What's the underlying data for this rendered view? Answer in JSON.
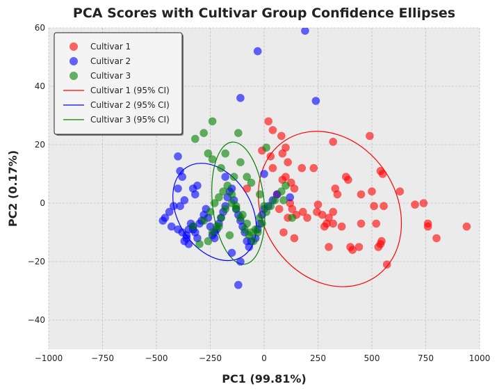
{
  "chart_data": {
    "type": "scatter",
    "title": "PCA Scores with Cultivar Group Confidence Ellipses",
    "xlabel": "PC1 (99.81%)",
    "ylabel": "PC2 (0.17%)",
    "xlim": [
      -1000,
      1000
    ],
    "ylim": [
      -50,
      60
    ],
    "xticks": [
      -1000,
      -750,
      -500,
      -250,
      0,
      250,
      500,
      750,
      1000
    ],
    "yticks": [
      -40,
      -20,
      0,
      20,
      40,
      60
    ],
    "xtick_labels": [
      "−1000",
      "−750",
      "−500",
      "−250",
      "0",
      "250",
      "500",
      "750",
      "1000"
    ],
    "ytick_labels": [
      "−40",
      "−20",
      "0",
      "20",
      "40",
      "60"
    ],
    "grid": true,
    "legend_position": "top-left",
    "series": [
      {
        "name": "Cultivar 1",
        "color": "#ff0000",
        "points": [
          [
            20,
            28
          ],
          [
            40,
            25
          ],
          [
            80,
            23
          ],
          [
            85,
            17
          ],
          [
            110,
            14
          ],
          [
            125,
            7
          ],
          [
            140,
            5
          ],
          [
            175,
            12
          ],
          [
            230,
            12
          ],
          [
            130,
            -2
          ],
          [
            150,
            -4
          ],
          [
            180,
            -3
          ],
          [
            200,
            -5
          ],
          [
            245,
            -3
          ],
          [
            250,
            -0.5
          ],
          [
            270,
            -4
          ],
          [
            280,
            -8
          ],
          [
            290,
            -7
          ],
          [
            300,
            -15
          ],
          [
            300,
            -5
          ],
          [
            320,
            -7
          ],
          [
            320,
            -3
          ],
          [
            330,
            5
          ],
          [
            340,
            3
          ],
          [
            360,
            -8
          ],
          [
            380,
            9
          ],
          [
            390,
            8
          ],
          [
            320,
            21
          ],
          [
            400,
            -15
          ],
          [
            410,
            -16
          ],
          [
            440,
            -15
          ],
          [
            450,
            -7
          ],
          [
            450,
            3
          ],
          [
            490,
            23
          ],
          [
            500,
            4
          ],
          [
            510,
            -1
          ],
          [
            520,
            -7
          ],
          [
            530,
            -15
          ],
          [
            540,
            -14
          ],
          [
            540,
            11
          ],
          [
            550,
            10
          ],
          [
            545,
            -13
          ],
          [
            555,
            -1
          ],
          [
            570,
            -21
          ],
          [
            630,
            4
          ],
          [
            700,
            -0.5
          ],
          [
            740,
            0
          ],
          [
            760,
            -8
          ],
          [
            760,
            -7
          ],
          [
            800,
            -12
          ],
          [
            940,
            -8
          ],
          [
            110,
            -5
          ],
          [
            140,
            -12
          ],
          [
            90,
            -10
          ],
          [
            70,
            -2
          ],
          [
            40,
            12
          ],
          [
            30,
            16
          ],
          [
            100,
            19
          ],
          [
            -10,
            18
          ],
          [
            85,
            8
          ],
          [
            100,
            9
          ],
          [
            60,
            3
          ],
          [
            120,
            0
          ],
          [
            -80,
            5
          ]
        ],
        "legend_label": "Cultivar 1"
      },
      {
        "name": "Cultivar 2",
        "color": "#0000ff",
        "points": [
          [
            190,
            59
          ],
          [
            -30,
            52
          ],
          [
            240,
            35
          ],
          [
            -110,
            36
          ],
          [
            -400,
            16
          ],
          [
            -390,
            11
          ],
          [
            -380,
            9
          ],
          [
            -400,
            5
          ],
          [
            -330,
            5
          ],
          [
            -310,
            6
          ],
          [
            -320,
            3
          ],
          [
            -370,
            1
          ],
          [
            -390,
            -1
          ],
          [
            -420,
            -1
          ],
          [
            -440,
            -3
          ],
          [
            -460,
            -5
          ],
          [
            -470,
            -6
          ],
          [
            -430,
            -8
          ],
          [
            -400,
            -9
          ],
          [
            -380,
            -10
          ],
          [
            -370,
            -13
          ],
          [
            -360,
            -12
          ],
          [
            -350,
            -9
          ],
          [
            -340,
            -7
          ],
          [
            -330,
            -8
          ],
          [
            -320,
            -10
          ],
          [
            -300,
            -7
          ],
          [
            -290,
            -6
          ],
          [
            -280,
            -4
          ],
          [
            -270,
            -2
          ],
          [
            -260,
            -5
          ],
          [
            -250,
            -8
          ],
          [
            -240,
            -11
          ],
          [
            -230,
            -12
          ],
          [
            -220,
            -9
          ],
          [
            -210,
            -7
          ],
          [
            -200,
            -5
          ],
          [
            -190,
            -3
          ],
          [
            -180,
            -1
          ],
          [
            -170,
            2
          ],
          [
            -160,
            4
          ],
          [
            -150,
            5
          ],
          [
            -140,
            1
          ],
          [
            -130,
            -2
          ],
          [
            -120,
            -4
          ],
          [
            -110,
            -6
          ],
          [
            -100,
            -8
          ],
          [
            -90,
            -10
          ],
          [
            -80,
            -13
          ],
          [
            -70,
            -15
          ],
          [
            -60,
            -13
          ],
          [
            -40,
            -12
          ],
          [
            -30,
            -9
          ],
          [
            -20,
            -7
          ],
          [
            -10,
            -4
          ],
          [
            0,
            -2
          ],
          [
            20,
            -1
          ],
          [
            40,
            1
          ],
          [
            60,
            3
          ],
          [
            120,
            2
          ],
          [
            0,
            10
          ],
          [
            -110,
            -20
          ],
          [
            -150,
            -17
          ],
          [
            -120,
            -28
          ],
          [
            -180,
            9
          ],
          [
            -230,
            -10
          ],
          [
            -330,
            -9
          ],
          [
            -360,
            -11
          ],
          [
            -350,
            -14
          ],
          [
            -310,
            -12
          ]
        ],
        "legend_label": "Cultivar 2"
      },
      {
        "name": "Cultivar 3",
        "color": "#008000",
        "points": [
          [
            -240,
            28
          ],
          [
            -280,
            24
          ],
          [
            -320,
            22
          ],
          [
            -260,
            17
          ],
          [
            -240,
            15
          ],
          [
            -200,
            12
          ],
          [
            -180,
            17
          ],
          [
            -120,
            24
          ],
          [
            -110,
            14
          ],
          [
            -140,
            9
          ],
          [
            -80,
            9
          ],
          [
            -60,
            7
          ],
          [
            -20,
            3
          ],
          [
            0,
            -1
          ],
          [
            -20,
            -5
          ],
          [
            -40,
            -9
          ],
          [
            -60,
            -10
          ],
          [
            -80,
            -7
          ],
          [
            -100,
            -4
          ],
          [
            -130,
            -2
          ],
          [
            -150,
            0
          ],
          [
            -180,
            -2
          ],
          [
            -200,
            -5
          ],
          [
            -220,
            -8
          ],
          [
            -240,
            -10
          ],
          [
            -260,
            -13
          ],
          [
            -300,
            -14
          ],
          [
            -330,
            -8
          ],
          [
            -280,
            -6
          ],
          [
            -250,
            -3
          ],
          [
            -230,
            0
          ],
          [
            -210,
            2
          ],
          [
            -190,
            4
          ],
          [
            -170,
            6
          ],
          [
            -150,
            3
          ],
          [
            -130,
            -1
          ],
          [
            -110,
            -5
          ],
          [
            -90,
            -9
          ],
          [
            -70,
            -11
          ],
          [
            -50,
            -13
          ],
          [
            -30,
            -10
          ],
          [
            -10,
            -7
          ],
          [
            10,
            -3
          ],
          [
            30,
            -1
          ],
          [
            50,
            1
          ],
          [
            80,
            4
          ],
          [
            100,
            6
          ],
          [
            130,
            -5
          ],
          [
            90,
            1
          ],
          [
            10,
            19
          ],
          [
            -210,
            -8
          ],
          [
            -160,
            -11
          ]
        ],
        "legend_label": "Cultivar 3"
      }
    ],
    "ellipses": [
      {
        "name": "Cultivar 1 (95% CI)",
        "color": "#ff0000",
        "center": [
          305,
          -2
        ],
        "rx_data": 310,
        "ry_data": 28,
        "angle_deg": -33
      },
      {
        "name": "Cultivar 2 (95% CI)",
        "color": "#0000ff",
        "center": [
          -230,
          -3
        ],
        "rx_data": 170,
        "ry_data": 18,
        "angle_deg": -32
      },
      {
        "name": "Cultivar 3 (95% CI)",
        "color": "#008000",
        "center": [
          -120,
          0
        ],
        "rx_data": 120,
        "ry_data": 21,
        "angle_deg": -6
      }
    ],
    "legend_entries": [
      "Cultivar 1",
      "Cultivar 2",
      "Cultivar 3",
      "Cultivar 1 (95% CI)",
      "Cultivar 2 (95% CI)",
      "Cultivar 3 (95% CI)"
    ]
  },
  "colors": {
    "plot_background": "#ebebeb",
    "grid": "#b0b0b0",
    "cultivar1": "#ff0000",
    "cultivar2": "#0000ff",
    "cultivar3": "#008000"
  }
}
